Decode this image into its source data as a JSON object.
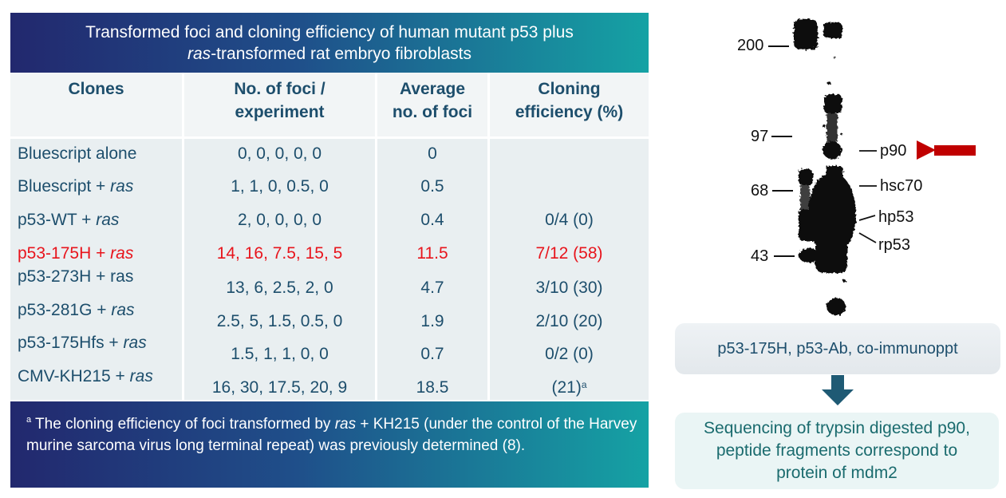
{
  "table": {
    "title_line1": "Transformed foci and cloning efficiency of human mutant p53 plus",
    "title_line2_italic": "ras",
    "title_line2_rest": "-transformed rat embryo fibroblasts",
    "headers": {
      "clones": "Clones",
      "foci_line1": "No. of foci /",
      "foci_line2": "experiment",
      "avg_line1": "Average",
      "avg_line2": "no. of foci",
      "eff_line1": "Cloning",
      "eff_line2": "efficiency (%)"
    },
    "rows": [
      {
        "clone": "Bluescript alone",
        "clone_italic": "",
        "foci": "0, 0, 0, 0, 0",
        "avg": "0",
        "eff": "",
        "eff_sup": ""
      },
      {
        "clone": "Bluescript + ",
        "clone_italic": "ras",
        "foci": "1, 1, 0, 0.5, 0",
        "avg": "0.5",
        "eff": "",
        "eff_sup": ""
      },
      {
        "clone": "p53-WT + ",
        "clone_italic": "ras",
        "foci": "2, 0, 0, 0, 0",
        "avg": "0.4",
        "eff": "0/4 (0)",
        "eff_sup": ""
      },
      {
        "clone": "p53-175H + ",
        "clone_italic": "ras",
        "foci": "14, 16, 7.5, 15, 5",
        "avg": "11.5",
        "eff": "7/12 (58)",
        "eff_sup": ""
      },
      {
        "clone": "p53-273H + ras",
        "clone_italic": "",
        "foci": "13, 6, 2.5, 2, 0",
        "avg": "4.7",
        "eff": "3/10 (30)",
        "eff_sup": ""
      },
      {
        "clone": "p53-281G + ",
        "clone_italic": "ras",
        "foci": "2.5, 5, 1.5, 0.5, 0",
        "avg": "1.9",
        "eff": "2/10 (20)",
        "eff_sup": ""
      },
      {
        "clone": "p53-175Hfs + ",
        "clone_italic": "ras",
        "foci": "1.5, 1, 1, 0, 0",
        "avg": "0.7",
        "eff": "0/2 (0)",
        "eff_sup": ""
      },
      {
        "clone": "CMV-KH215 + ",
        "clone_italic": "ras",
        "foci": "16, 30, 17.5, 20, 9",
        "avg": "18.5",
        "eff": "(21)",
        "eff_sup": "a"
      }
    ],
    "highlight_color": "#e8141c",
    "text_color": "#1d4e6c",
    "footnote": {
      "sup": "a",
      "text_before": " The cloning efficiency of foci transformed by ",
      "italic": "ras",
      "text_after": " + KH215 (under the control of the Harvey murine sarcoma virus long terminal repeat) was previously determined (8)."
    }
  },
  "blot": {
    "markers": [
      "200",
      "97",
      "68",
      "43"
    ],
    "bands": [
      "p90",
      "hsc70",
      "hp53",
      "rp53"
    ],
    "arrow_color": "#c00000"
  },
  "flow": {
    "step1": "p53-175H, p53-Ab, co-immunoppt",
    "step2_line1": "Sequencing of trypsin digested p90,",
    "step2_line2": "peptide fragments correspond to",
    "step2_line3": "protein of mdm2"
  }
}
